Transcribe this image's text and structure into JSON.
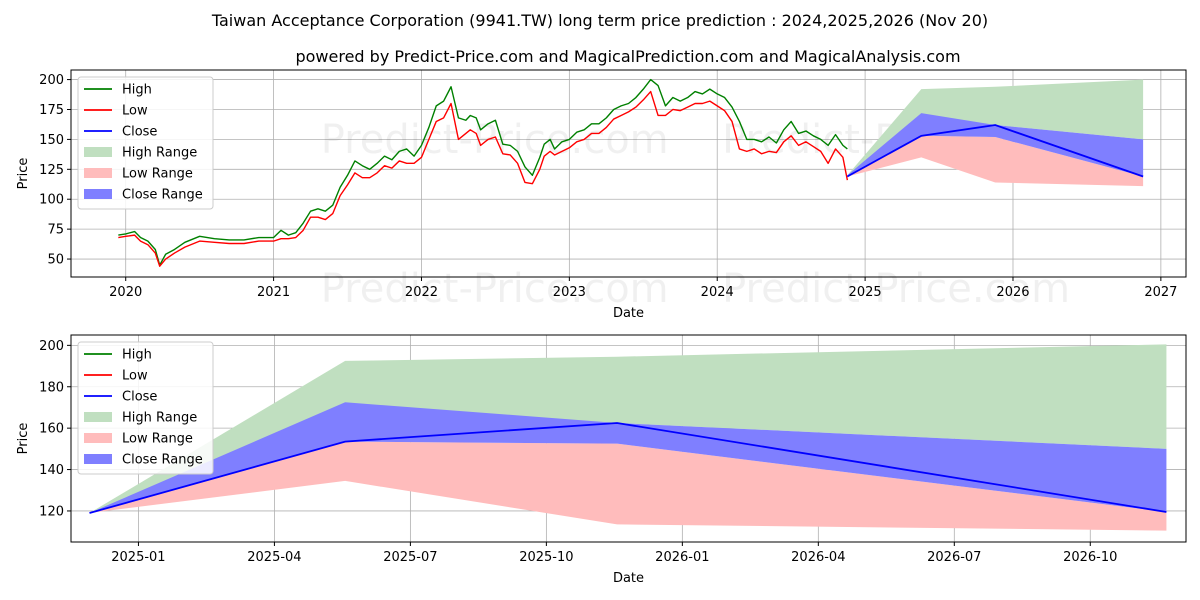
{
  "title": "Taiwan Acceptance Corporation (9941.TW) long term price prediction : 2024,2025,2026 (Nov 20)",
  "subtitle": "powered by Predict-Price.com and MagicalPrediction.com and MagicalAnalysis.com",
  "watermark": "Predict-Price.com",
  "colors": {
    "high": "#008000",
    "low": "#ff0000",
    "close": "#0000ff",
    "high_range": "#c0dfc0",
    "low_range": "#ffbcbc",
    "close_range": "#7f7fff",
    "grid": "#b0b0b0"
  },
  "chart_data": [
    {
      "type": "line",
      "name": "long-term",
      "xlabel": "Date",
      "ylabel": "Price",
      "xlim": [
        2019.63,
        2027.17
      ],
      "ylim": [
        35,
        208
      ],
      "xticks": [
        2020,
        2021,
        2022,
        2023,
        2024,
        2025,
        2026,
        2027
      ],
      "xtick_labels": [
        "2020",
        "2021",
        "2022",
        "2023",
        "2024",
        "2025",
        "2026",
        "2027"
      ],
      "yticks": [
        50,
        75,
        100,
        125,
        150,
        175,
        200
      ],
      "ytick_labels": [
        "50",
        "75",
        "100",
        "125",
        "150",
        "175",
        "200"
      ],
      "grid": true,
      "legend": {
        "position": "top-left",
        "entries": [
          "High",
          "Low",
          "Close",
          "High Range",
          "Low Range",
          "Close Range"
        ]
      },
      "history": {
        "x": [
          2019.95,
          2020.0,
          2020.06,
          2020.1,
          2020.15,
          2020.2,
          2020.23,
          2020.27,
          2020.33,
          2020.4,
          2020.5,
          2020.6,
          2020.7,
          2020.8,
          2020.9,
          2021.0,
          2021.05,
          2021.1,
          2021.15,
          2021.2,
          2021.25,
          2021.3,
          2021.35,
          2021.4,
          2021.45,
          2021.5,
          2021.55,
          2021.6,
          2021.65,
          2021.7,
          2021.75,
          2021.8,
          2021.85,
          2021.9,
          2021.95,
          2022.0,
          2022.05,
          2022.1,
          2022.15,
          2022.2,
          2022.25,
          2022.3,
          2022.33,
          2022.37,
          2022.4,
          2022.45,
          2022.5,
          2022.55,
          2022.6,
          2022.65,
          2022.7,
          2022.75,
          2022.8,
          2022.83,
          2022.87,
          2022.9,
          2022.95,
          2023.0,
          2023.05,
          2023.1,
          2023.15,
          2023.2,
          2023.25,
          2023.3,
          2023.35,
          2023.4,
          2023.45,
          2023.5,
          2023.55,
          2023.6,
          2023.65,
          2023.7,
          2023.75,
          2023.8,
          2023.85,
          2023.9,
          2023.95,
          2024.0,
          2024.05,
          2024.1,
          2024.15,
          2024.2,
          2024.25,
          2024.3,
          2024.35,
          2024.4,
          2024.45,
          2024.5,
          2024.55,
          2024.6,
          2024.65,
          2024.7,
          2024.75,
          2024.8,
          2024.85,
          2024.88
        ],
        "high": [
          70,
          71,
          73,
          68,
          65,
          58,
          45,
          54,
          58,
          64,
          69,
          67,
          66,
          66,
          68,
          68,
          74,
          70,
          72,
          80,
          90,
          92,
          90,
          95,
          110,
          120,
          132,
          128,
          125,
          130,
          136,
          133,
          140,
          142,
          136,
          145,
          160,
          178,
          182,
          194,
          168,
          166,
          170,
          168,
          158,
          163,
          166,
          146,
          145,
          140,
          127,
          120,
          135,
          146,
          150,
          142,
          148,
          150,
          156,
          158,
          163,
          163,
          168,
          175,
          178,
          180,
          185,
          192,
          200,
          195,
          178,
          185,
          182,
          185,
          190,
          188,
          192,
          188,
          185,
          177,
          165,
          150,
          150,
          148,
          152,
          147,
          158,
          165,
          155,
          157,
          153,
          150,
          145,
          154,
          145,
          142
        ],
        "low": [
          68,
          69,
          70,
          65,
          62,
          55,
          44,
          50,
          55,
          60,
          65,
          64,
          63,
          63,
          65,
          65,
          67,
          67,
          68,
          74,
          85,
          85,
          83,
          88,
          103,
          112,
          122,
          118,
          118,
          122,
          128,
          126,
          132,
          130,
          130,
          135,
          150,
          165,
          168,
          180,
          150,
          155,
          158,
          155,
          145,
          150,
          152,
          138,
          137,
          130,
          114,
          113,
          125,
          136,
          140,
          137,
          140,
          143,
          148,
          150,
          155,
          155,
          160,
          167,
          170,
          173,
          177,
          183,
          190,
          170,
          170,
          175,
          174,
          177,
          180,
          180,
          182,
          178,
          174,
          165,
          142,
          140,
          142,
          138,
          140,
          139,
          148,
          153,
          145,
          148,
          144,
          140,
          130,
          142,
          135,
          116
        ]
      },
      "forecast": {
        "x": [
          2024.88,
          2025.38,
          2025.88,
          2026.88
        ],
        "close": [
          119,
          153,
          162,
          119
        ],
        "high_range": [
          [
            120,
            120
          ],
          [
            153,
            192
          ],
          [
            162,
            194
          ],
          [
            150,
            200
          ]
        ],
        "low_range": [
          [
            119,
            120
          ],
          [
            135,
            153
          ],
          [
            114,
            152
          ],
          [
            111,
            119
          ]
        ],
        "close_range": [
          [
            119,
            120
          ],
          [
            153,
            172
          ],
          [
            152,
            162
          ],
          [
            119,
            150
          ]
        ]
      }
    },
    {
      "type": "line",
      "name": "forecast-zoom",
      "xlabel": "Date",
      "ylabel": "Price",
      "xlim": [
        2024.876,
        2026.926
      ],
      "ylim": [
        105,
        205
      ],
      "xticks": [
        2025.0,
        2025.25,
        2025.5,
        2025.75,
        2026.0,
        2026.25,
        2026.5,
        2026.75
      ],
      "xtick_labels": [
        "2025-01",
        "2025-04",
        "2025-07",
        "2025-10",
        "2026-01",
        "2026-04",
        "2026-07",
        "2026-10"
      ],
      "yticks": [
        120,
        140,
        160,
        180,
        200
      ],
      "ytick_labels": [
        "120",
        "140",
        "160",
        "180",
        "200"
      ],
      "grid": true,
      "legend": {
        "position": "top-left",
        "entries": [
          "High",
          "Low",
          "Close",
          "High Range",
          "Low Range",
          "Close Range"
        ]
      },
      "forecast": {
        "x": [
          2024.91,
          2025.38,
          2025.88,
          2026.89
        ],
        "close": [
          119,
          153.5,
          162.5,
          119.5
        ],
        "high_range": [
          [
            119,
            119
          ],
          [
            153.5,
            192.5
          ],
          [
            162.5,
            194.5
          ],
          [
            150,
            200.5
          ]
        ],
        "low_range": [
          [
            119,
            119
          ],
          [
            134.5,
            153.5
          ],
          [
            113.5,
            152.5
          ],
          [
            110.5,
            119.5
          ]
        ],
        "close_range": [
          [
            119,
            119
          ],
          [
            153.5,
            172.5
          ],
          [
            152.5,
            162.5
          ],
          [
            119.5,
            150
          ]
        ]
      }
    }
  ]
}
